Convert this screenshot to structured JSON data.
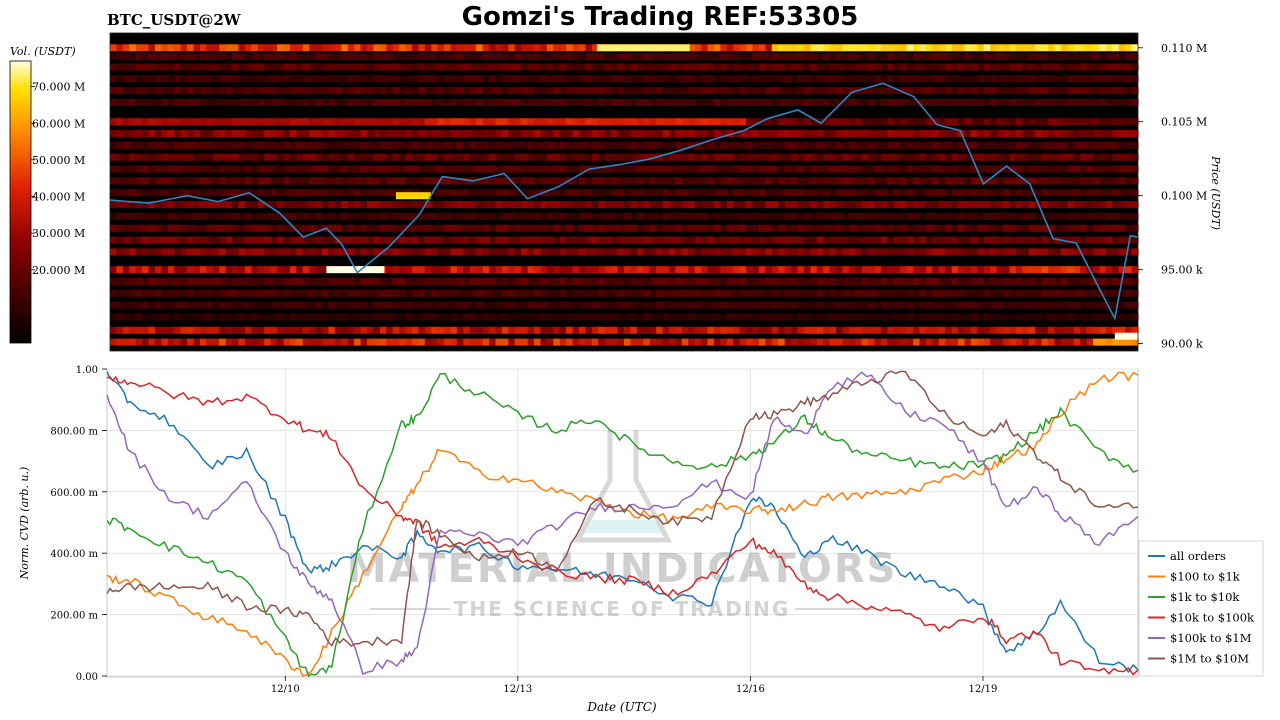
{
  "header": {
    "pair_label": "BTC_USDT@2W",
    "title": "Gomzi's Trading REF:53305"
  },
  "colors": {
    "heatmap_low": "#000000",
    "heatmap_mid": "#dd2200",
    "heatmap_high": "#ffffff",
    "price_line": "#2e86c1"
  },
  "watermark": {
    "line1": "MATERIAL INDICATORS",
    "line2": "THE SCIENCE OF TRADING"
  },
  "chart_data": [
    {
      "type": "heatmap",
      "title": "",
      "colorbar_label": "Vol. (USDT)",
      "colorbar_ticks": [
        "20.000 M",
        "30.000 M",
        "40.000 M",
        "50.000 M",
        "60.000 M",
        "70.000 M"
      ],
      "colorbar_values": [
        20,
        30,
        40,
        50,
        60,
        70
      ],
      "colorbar_range": [
        0,
        77
      ],
      "ylabel": "Price (USDT)",
      "ytick_labels": [
        "90.00 k",
        "95.00 k",
        "0.100 M",
        "0.105 M",
        "0.110 M"
      ],
      "ytick_values": [
        90000,
        95000,
        100000,
        105000,
        110000
      ],
      "ylim": [
        89500,
        111000
      ],
      "x_day_range": [
        7.7,
        21.0
      ],
      "bands": [
        {
          "price": 110000,
          "intensity": 0.55,
          "hot": [
            [
              16.2,
              21.0,
              0.92
            ]
          ]
        },
        {
          "price": 109400,
          "intensity": 0.18
        },
        {
          "price": 108700,
          "intensity": 0.22
        },
        {
          "price": 107900,
          "intensity": 0.15
        },
        {
          "price": 107100,
          "intensity": 0.2
        },
        {
          "price": 106300,
          "intensity": 0.18
        },
        {
          "price": 105000,
          "intensity": 0.25,
          "hot": [
            [
              7.7,
              11.7,
              0.42
            ],
            [
              11.7,
              15.9,
              0.55
            ]
          ]
        },
        {
          "price": 104200,
          "intensity": 0.32
        },
        {
          "price": 103400,
          "intensity": 0.18
        },
        {
          "price": 102600,
          "intensity": 0.25
        },
        {
          "price": 101800,
          "intensity": 0.2
        },
        {
          "price": 101000,
          "intensity": 0.22
        },
        {
          "price": 100200,
          "intensity": 0.18
        },
        {
          "price": 99400,
          "intensity": 0.3
        },
        {
          "price": 98600,
          "intensity": 0.15
        },
        {
          "price": 97800,
          "intensity": 0.22
        },
        {
          "price": 97000,
          "intensity": 0.28
        },
        {
          "price": 96200,
          "intensity": 0.32
        },
        {
          "price": 95000,
          "intensity": 0.45,
          "hot": [
            [
              19.5,
              20.2,
              0.6
            ]
          ]
        },
        {
          "price": 94200,
          "intensity": 0.2
        },
        {
          "price": 93400,
          "intensity": 0.18
        },
        {
          "price": 92600,
          "intensity": 0.15
        },
        {
          "price": 91800,
          "intensity": 0.12
        },
        {
          "price": 90900,
          "intensity": 0.45
        },
        {
          "price": 90100,
          "intensity": 0.5,
          "hot": [
            [
              20.4,
              21.0,
              0.8
            ]
          ]
        }
      ],
      "bright_spots": [
        {
          "day": 10.5,
          "days": 0.75,
          "price": 95000,
          "level": 1.0
        },
        {
          "day": 11.4,
          "days": 0.45,
          "price": 100000,
          "level": 0.88
        },
        {
          "day": 14.0,
          "days": 1.2,
          "price": 110000,
          "level": 0.95
        },
        {
          "day": 20.7,
          "days": 0.3,
          "price": 90500,
          "level": 1.0
        }
      ],
      "price_series": {
        "name": "",
        "days": [
          7.7,
          8.2,
          8.7,
          9.1,
          9.5,
          9.9,
          10.2,
          10.5,
          10.7,
          10.9,
          11.3,
          11.7,
          12.0,
          12.4,
          12.8,
          13.1,
          13.5,
          13.9,
          14.3,
          14.7,
          15.1,
          15.5,
          15.9,
          16.2,
          16.6,
          16.9,
          17.3,
          17.7,
          18.1,
          18.4,
          18.7,
          19.0,
          19.3,
          19.6,
          19.9,
          20.2,
          20.5,
          20.7,
          20.9,
          21.0
        ],
        "values": [
          99700,
          99500,
          100000,
          99600,
          100200,
          98800,
          97200,
          97800,
          96700,
          94800,
          96500,
          98700,
          101300,
          101000,
          101500,
          99800,
          100600,
          101800,
          102100,
          102500,
          103100,
          103800,
          104400,
          105200,
          105800,
          104900,
          107000,
          107600,
          106700,
          104800,
          104400,
          100800,
          102000,
          100800,
          97100,
          96800,
          93700,
          91700,
          97300,
          97200
        ]
      }
    },
    {
      "type": "line",
      "title": "",
      "xlabel": "Date (UTC)",
      "ylabel": "Norm. CVD (arb. u.)",
      "ytick_labels": [
        "0.00",
        "200.00 m",
        "400.00 m",
        "600.00 m",
        "800.00 m",
        "1.00"
      ],
      "ytick_values": [
        0,
        0.2,
        0.4,
        0.6,
        0.8,
        1.0
      ],
      "ylim": [
        0,
        1.0
      ],
      "xtick_labels": [
        "12/10",
        "12/13",
        "12/16",
        "12/19"
      ],
      "xtick_values": [
        10,
        13,
        16,
        19
      ],
      "xlim": [
        7.7,
        21.0
      ],
      "legend_position": "right",
      "x": [
        7.7,
        8.0,
        8.5,
        9.0,
        9.5,
        10.0,
        10.3,
        10.6,
        11.0,
        11.5,
        11.7,
        12.0,
        12.5,
        13.0,
        13.5,
        14.0,
        14.5,
        15.0,
        15.5,
        16.0,
        16.3,
        16.7,
        17.0,
        17.5,
        18.0,
        18.5,
        19.0,
        19.3,
        19.7,
        20.0,
        20.5,
        21.0
      ],
      "series": [
        {
          "name": "all orders",
          "color": "#1f77b4",
          "values": [
            0.98,
            0.89,
            0.83,
            0.68,
            0.73,
            0.51,
            0.34,
            0.36,
            0.42,
            0.39,
            0.46,
            0.41,
            0.42,
            0.36,
            0.35,
            0.33,
            0.32,
            0.26,
            0.24,
            0.58,
            0.55,
            0.38,
            0.45,
            0.4,
            0.33,
            0.3,
            0.22,
            0.08,
            0.14,
            0.24,
            0.05,
            0.02
          ]
        },
        {
          "name": "$100 to $1k",
          "color": "#ff7f0e",
          "values": [
            0.32,
            0.31,
            0.25,
            0.19,
            0.15,
            0.05,
            0.0,
            0.14,
            0.33,
            0.55,
            0.62,
            0.74,
            0.66,
            0.64,
            0.6,
            0.57,
            0.53,
            0.51,
            0.55,
            0.54,
            0.54,
            0.56,
            0.58,
            0.59,
            0.6,
            0.64,
            0.67,
            0.71,
            0.75,
            0.86,
            0.97,
            0.98
          ]
        },
        {
          "name": "$1k to $10k",
          "color": "#2ca02c",
          "values": [
            0.51,
            0.48,
            0.42,
            0.37,
            0.31,
            0.12,
            0.0,
            0.03,
            0.48,
            0.82,
            0.84,
            0.98,
            0.92,
            0.85,
            0.8,
            0.84,
            0.75,
            0.7,
            0.68,
            0.72,
            0.76,
            0.84,
            0.78,
            0.72,
            0.7,
            0.68,
            0.69,
            0.72,
            0.8,
            0.86,
            0.73,
            0.67
          ]
        },
        {
          "name": "$10k to $100k",
          "color": "#d62728",
          "values": [
            0.97,
            0.96,
            0.92,
            0.89,
            0.91,
            0.84,
            0.8,
            0.78,
            0.61,
            0.52,
            0.5,
            0.42,
            0.44,
            0.39,
            0.34,
            0.32,
            0.31,
            0.27,
            0.33,
            0.44,
            0.4,
            0.3,
            0.26,
            0.23,
            0.2,
            0.15,
            0.2,
            0.12,
            0.14,
            0.05,
            0.01,
            0.02
          ]
        },
        {
          "name": "$100k to $1M",
          "color": "#9467bd",
          "values": [
            0.92,
            0.73,
            0.58,
            0.52,
            0.63,
            0.4,
            0.3,
            0.25,
            0.02,
            0.05,
            0.09,
            0.47,
            0.46,
            0.43,
            0.49,
            0.55,
            0.55,
            0.56,
            0.63,
            0.58,
            0.84,
            0.78,
            0.94,
            0.98,
            0.86,
            0.82,
            0.69,
            0.55,
            0.61,
            0.53,
            0.43,
            0.52
          ]
        },
        {
          "name": "$1M to $10M",
          "color": "#8c564b",
          "values": [
            0.28,
            0.29,
            0.29,
            0.29,
            0.23,
            0.21,
            0.2,
            0.11,
            0.11,
            0.12,
            0.51,
            0.46,
            0.38,
            0.41,
            0.35,
            0.57,
            0.54,
            0.5,
            0.52,
            0.85,
            0.85,
            0.89,
            0.91,
            0.96,
            0.99,
            0.85,
            0.78,
            0.82,
            0.72,
            0.65,
            0.55,
            0.55
          ]
        }
      ]
    }
  ]
}
